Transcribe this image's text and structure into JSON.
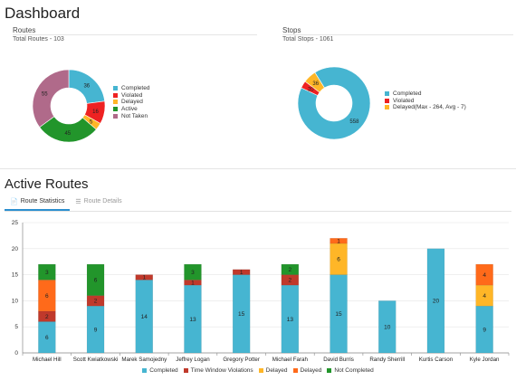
{
  "page": {
    "title": "Dashboard"
  },
  "routes": {
    "heading": "Routes",
    "total": "Total Routes - 103",
    "donut": [
      {
        "name": "Completed",
        "value": 36,
        "color": "#46b5d1"
      },
      {
        "name": "Violated",
        "value": 16,
        "color": "#ee2222"
      },
      {
        "name": "Delayed",
        "value": 5,
        "color": "#ffb627"
      },
      {
        "name": "Active",
        "value": 45,
        "color": "#22952b"
      },
      {
        "name": "Not Taken",
        "value": 55,
        "color": "#b06a8a"
      }
    ]
  },
  "stops": {
    "heading": "Stops",
    "total": "Total Stops - 1061",
    "donut": [
      {
        "name": "Completed",
        "value": 558,
        "color": "#46b5d1"
      },
      {
        "name": "Violated",
        "value": 20,
        "color": "#ee2222"
      },
      {
        "name": "Delayed(Max - 264, Avg - 7)",
        "value": 36,
        "color": "#ffb627"
      }
    ]
  },
  "active_routes": {
    "title": "Active Routes",
    "tabs": [
      {
        "label": "Route Statistics",
        "icon": "document-icon",
        "active": true
      },
      {
        "label": "Route Details",
        "icon": "list-icon",
        "active": false
      }
    ]
  },
  "chart_data": {
    "type": "bar",
    "stacked": true,
    "categories": [
      "Michael Hill",
      "Scott Kwiatkowski",
      "Marek Samojedny",
      "Jeffrey Logan",
      "Gregory Potter",
      "Michael Farah",
      "David Burris",
      "Randy Sherrill",
      "Kurtis Carson",
      "Kyle Jordan"
    ],
    "series": [
      {
        "name": "Completed",
        "color": "#46b5d1",
        "values": [
          6,
          9,
          14,
          13,
          15,
          13,
          15,
          10,
          20,
          9
        ]
      },
      {
        "name": "Time Window Violations",
        "color": "#c0392b",
        "values": [
          2,
          2,
          1,
          1,
          1,
          2,
          0,
          0,
          0,
          0
        ]
      },
      {
        "name": "Delayed",
        "color": "#ffb627",
        "values": [
          0,
          0,
          0,
          0,
          0,
          0,
          6,
          0,
          0,
          4
        ]
      },
      {
        "name": "Delayed",
        "color": "#ff6a1a",
        "values": [
          6,
          0,
          0,
          0,
          0,
          0,
          1,
          0,
          0,
          4
        ]
      },
      {
        "name": "Not Completed",
        "color": "#22952b",
        "values": [
          3,
          6,
          0,
          3,
          0,
          2,
          0,
          0,
          0,
          0
        ]
      }
    ],
    "ylim": [
      0,
      25
    ],
    "yticks": [
      0,
      5,
      10,
      15,
      20,
      25
    ],
    "grid": true,
    "legend": "bottom"
  }
}
